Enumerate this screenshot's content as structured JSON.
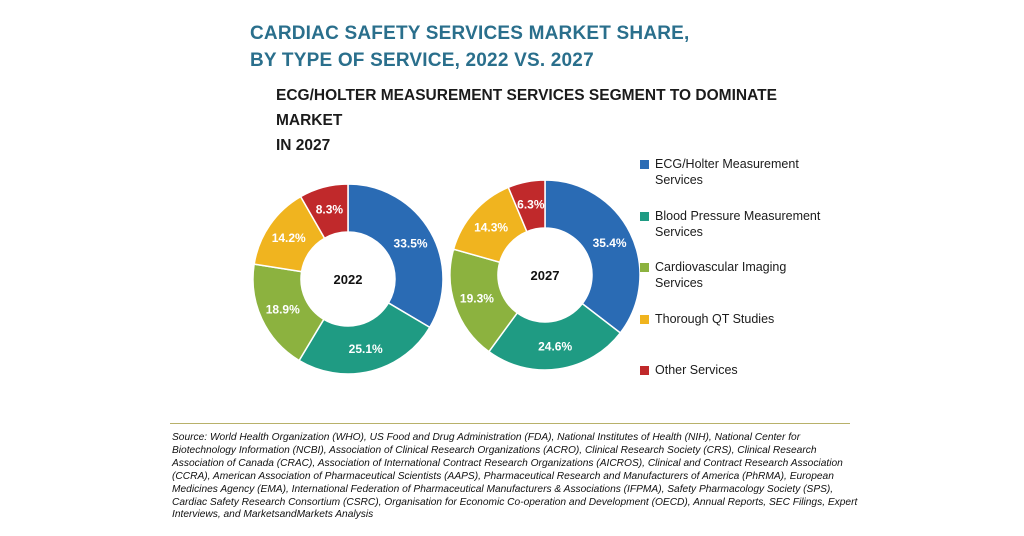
{
  "title_lines": [
    "CARDIAC SAFETY SERVICES MARKET SHARE,",
    "BY TYPE OF SERVICE, 2022 VS. 2027"
  ],
  "subtitle_lines": [
    "ECG/HOLTER MEASUREMENT SERVICES SEGMENT TO DOMINATE MARKET",
    "IN 2027"
  ],
  "legend": {
    "items": [
      {
        "lines": [
          "ECG/Holter Measurement",
          "Services"
        ],
        "color": "#2a6bb4"
      },
      {
        "lines": [
          "Blood Pressure Measurement",
          "Services"
        ],
        "color": "#1f9b83"
      },
      {
        "lines": [
          "Cardiovascular Imaging",
          "Services"
        ],
        "color": "#8cb23f"
      },
      {
        "lines": [
          "Thorough QT Studies"
        ],
        "color": "#f0b41f"
      },
      {
        "lines": [
          "Other Services"
        ],
        "color": "#c0292b"
      }
    ]
  },
  "chart_data": [
    {
      "type": "pie",
      "center_label": "2022",
      "categories": [
        "ECG/Holter Measurement Services",
        "Blood Pressure Measurement Services",
        "Cardiovascular Imaging Services",
        "Thorough QT Studies",
        "Other Services"
      ],
      "values": [
        33.5,
        25.1,
        18.9,
        14.2,
        8.3
      ],
      "labels": [
        "33.5%",
        "25.1%",
        "18.9%",
        "14.2%",
        "8.3%"
      ],
      "colors": [
        "#2a6bb4",
        "#1f9b83",
        "#8cb23f",
        "#f0b41f",
        "#c0292b"
      ]
    },
    {
      "type": "pie",
      "center_label": "2027",
      "categories": [
        "ECG/Holter Measurement Services",
        "Blood Pressure Measurement Services",
        "Cardiovascular Imaging Services",
        "Thorough QT Studies",
        "Other Services"
      ],
      "values": [
        35.4,
        24.6,
        19.3,
        14.3,
        6.3
      ],
      "labels": [
        "35.4%",
        "24.6%",
        "19.3%",
        "14.3%",
        "6.3%"
      ],
      "colors": [
        "#2a6bb4",
        "#1f9b83",
        "#8cb23f",
        "#f0b41f",
        "#c0292b"
      ]
    }
  ],
  "source_text": "Source: World Health Organization (WHO), US Food and Drug Administration (FDA), National Institutes of Health (NIH), National Center for Biotechnology Information (NCBI), Association of Clinical Research Organizations (ACRO), Clinical Research Society (CRS), Clinical Research Association of Canada (CRAC), Association of International Contract Research Organizations (AICROS), Clinical and Contract Research Association (CCRA), American Association of Pharmaceutical Scientists (AAPS), Pharmaceutical Research and Manufacturers of America (PhRMA), European Medicines Agency (EMA), International Federation of Pharmaceutical Manufacturers & Associations (IFPMA), Safety Pharmacology Society (SPS), Cardiac Safety Research Consortium (CSRC), Organisation for Economic Co-operation and Development (OECD), Annual Reports, SEC Filings, Expert Interviews, and MarketsandMarkets Analysis"
}
